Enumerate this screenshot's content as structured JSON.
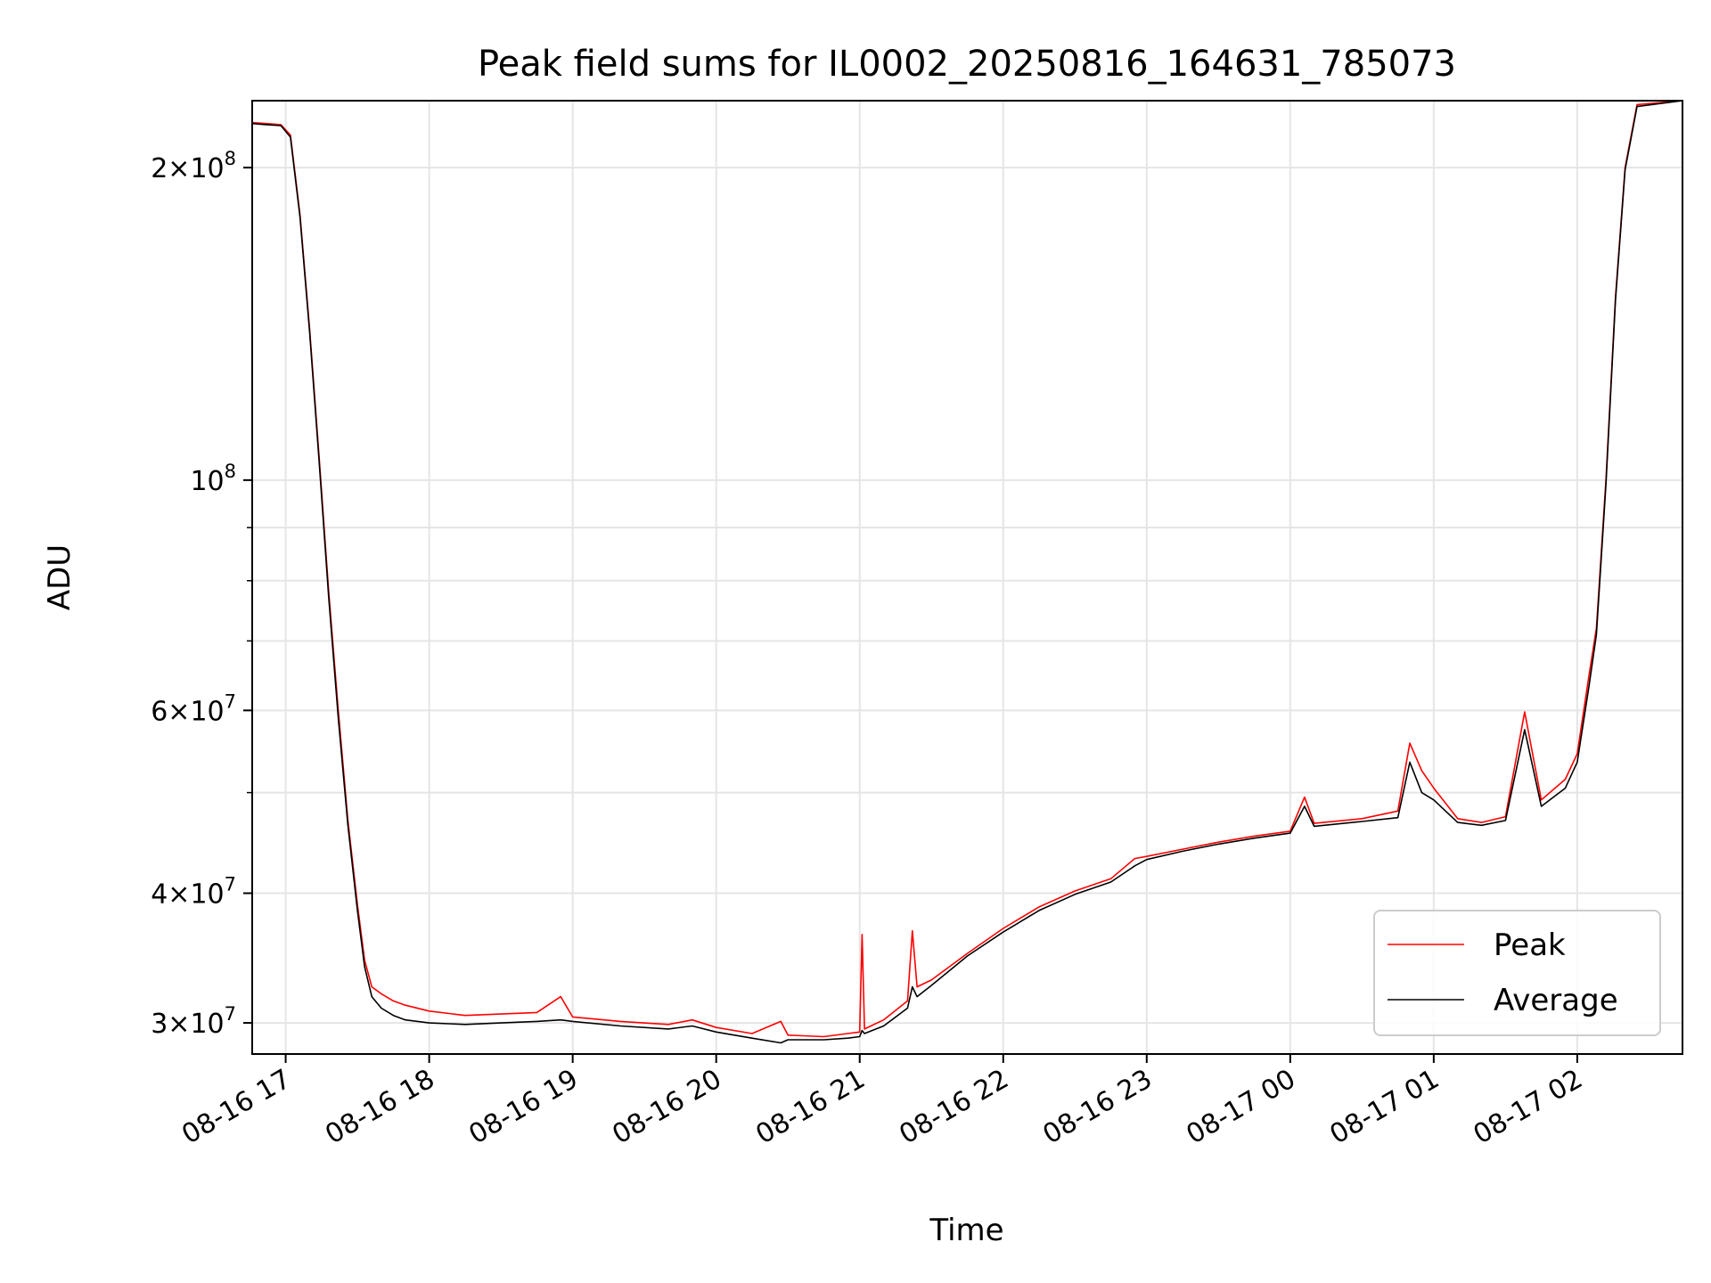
{
  "chart_data": {
    "type": "line",
    "title": "Peak field sums for IL0002_20250816_164631_785073",
    "xlabel": "Time",
    "ylabel": "ADU",
    "y_scale": "log",
    "ylim": [
      28000000,
      232000000
    ],
    "xlim": [
      "08-16 16:46",
      "08-17 02:44"
    ],
    "grid": true,
    "legend_position": "lower-right",
    "x_ticks": [
      "08-16 17",
      "08-16 18",
      "08-16 19",
      "08-16 20",
      "08-16 21",
      "08-16 22",
      "08-16 23",
      "08-17 00",
      "08-17 01",
      "08-17 02"
    ],
    "y_major_ticks": [
      {
        "value": 30000000,
        "mantissa": "3",
        "exp": "7"
      },
      {
        "value": 40000000,
        "mantissa": "4",
        "exp": "7"
      },
      {
        "value": 60000000,
        "mantissa": "6",
        "exp": "7"
      },
      {
        "value": 100000000,
        "mantissa": "",
        "exp": "8"
      },
      {
        "value": 200000000,
        "mantissa": "2",
        "exp": "8"
      }
    ],
    "y_minor_ticks": [
      50000000,
      70000000,
      80000000,
      90000000
    ],
    "series": [
      {
        "name": "Peak",
        "color": "#ff0000",
        "points": [
          [
            "08-16 16:46",
            221000000
          ],
          [
            "08-16 16:52",
            220500000
          ],
          [
            "08-16 16:58",
            220000000
          ],
          [
            "08-16 17:02",
            215000000
          ],
          [
            "08-16 17:06",
            180000000
          ],
          [
            "08-16 17:10",
            140000000
          ],
          [
            "08-16 17:14",
            105000000
          ],
          [
            "08-16 17:18",
            78000000
          ],
          [
            "08-16 17:22",
            60000000
          ],
          [
            "08-16 17:26",
            47000000
          ],
          [
            "08-16 17:30",
            39000000
          ],
          [
            "08-16 17:33",
            34500000
          ],
          [
            "08-16 17:36",
            32500000
          ],
          [
            "08-16 17:40",
            32000000
          ],
          [
            "08-16 17:45",
            31500000
          ],
          [
            "08-16 17:50",
            31200000
          ],
          [
            "08-16 18:00",
            30800000
          ],
          [
            "08-16 18:15",
            30500000
          ],
          [
            "08-16 18:30",
            30600000
          ],
          [
            "08-16 18:45",
            30700000
          ],
          [
            "08-16 18:55",
            31800000
          ],
          [
            "08-16 19:00",
            30400000
          ],
          [
            "08-16 19:20",
            30100000
          ],
          [
            "08-16 19:40",
            29900000
          ],
          [
            "08-16 19:50",
            30200000
          ],
          [
            "08-16 20:00",
            29700000
          ],
          [
            "08-16 20:15",
            29300000
          ],
          [
            "08-16 20:27",
            30100000
          ],
          [
            "08-16 20:30",
            29200000
          ],
          [
            "08-16 20:45",
            29100000
          ],
          [
            "08-16 20:55",
            29300000
          ],
          [
            "08-16 21:00",
            29400000
          ],
          [
            "08-16 21:01",
            36500000
          ],
          [
            "08-16 21:02",
            29600000
          ],
          [
            "08-16 21:10",
            30200000
          ],
          [
            "08-16 21:20",
            31500000
          ],
          [
            "08-16 21:22",
            36800000
          ],
          [
            "08-16 21:24",
            32500000
          ],
          [
            "08-16 21:30",
            33000000
          ],
          [
            "08-16 21:45",
            35000000
          ],
          [
            "08-16 22:00",
            37000000
          ],
          [
            "08-16 22:15",
            38800000
          ],
          [
            "08-16 22:30",
            40200000
          ],
          [
            "08-16 22:45",
            41300000
          ],
          [
            "08-16 22:55",
            43200000
          ],
          [
            "08-16 23:00",
            43400000
          ],
          [
            "08-16 23:15",
            44100000
          ],
          [
            "08-16 23:30",
            44800000
          ],
          [
            "08-16 23:45",
            45400000
          ],
          [
            "08-17 00:00",
            45900000
          ],
          [
            "08-17 00:06",
            49500000
          ],
          [
            "08-17 00:10",
            46700000
          ],
          [
            "08-17 00:30",
            47200000
          ],
          [
            "08-17 00:45",
            48000000
          ],
          [
            "08-17 00:50",
            55800000
          ],
          [
            "08-17 00:55",
            52500000
          ],
          [
            "08-17 01:00",
            50500000
          ],
          [
            "08-17 01:10",
            47200000
          ],
          [
            "08-17 01:20",
            46800000
          ],
          [
            "08-17 01:30",
            47400000
          ],
          [
            "08-17 01:38",
            59800000
          ],
          [
            "08-17 01:45",
            49200000
          ],
          [
            "08-17 01:55",
            51500000
          ],
          [
            "08-17 02:00",
            54500000
          ],
          [
            "08-17 02:05",
            65000000
          ],
          [
            "08-17 02:08",
            72000000
          ],
          [
            "08-17 02:12",
            100000000
          ],
          [
            "08-17 02:16",
            150000000
          ],
          [
            "08-17 02:20",
            200000000
          ],
          [
            "08-17 02:25",
            230000000
          ],
          [
            "08-17 02:44",
            232000000
          ]
        ]
      },
      {
        "name": "Average",
        "color": "#000000",
        "points": [
          [
            "08-16 16:46",
            220500000
          ],
          [
            "08-16 16:52",
            220000000
          ],
          [
            "08-16 16:58",
            219500000
          ],
          [
            "08-16 17:02",
            214000000
          ],
          [
            "08-16 17:06",
            179000000
          ],
          [
            "08-16 17:10",
            139000000
          ],
          [
            "08-16 17:14",
            104000000
          ],
          [
            "08-16 17:18",
            77000000
          ],
          [
            "08-16 17:22",
            59000000
          ],
          [
            "08-16 17:26",
            46500000
          ],
          [
            "08-16 17:30",
            38500000
          ],
          [
            "08-16 17:33",
            34000000
          ],
          [
            "08-16 17:36",
            31800000
          ],
          [
            "08-16 17:40",
            31000000
          ],
          [
            "08-16 17:45",
            30500000
          ],
          [
            "08-16 17:50",
            30200000
          ],
          [
            "08-16 18:00",
            30000000
          ],
          [
            "08-16 18:15",
            29900000
          ],
          [
            "08-16 18:30",
            30000000
          ],
          [
            "08-16 18:45",
            30100000
          ],
          [
            "08-16 18:55",
            30200000
          ],
          [
            "08-16 19:00",
            30100000
          ],
          [
            "08-16 19:20",
            29800000
          ],
          [
            "08-16 19:40",
            29600000
          ],
          [
            "08-16 19:50",
            29800000
          ],
          [
            "08-16 20:00",
            29400000
          ],
          [
            "08-16 20:15",
            29000000
          ],
          [
            "08-16 20:27",
            28700000
          ],
          [
            "08-16 20:30",
            28900000
          ],
          [
            "08-16 20:45",
            28900000
          ],
          [
            "08-16 20:55",
            29000000
          ],
          [
            "08-16 21:00",
            29100000
          ],
          [
            "08-16 21:01",
            29500000
          ],
          [
            "08-16 21:02",
            29300000
          ],
          [
            "08-16 21:10",
            29800000
          ],
          [
            "08-16 21:20",
            31000000
          ],
          [
            "08-16 21:22",
            32500000
          ],
          [
            "08-16 21:24",
            31800000
          ],
          [
            "08-16 21:30",
            32600000
          ],
          [
            "08-16 21:45",
            34800000
          ],
          [
            "08-16 22:00",
            36700000
          ],
          [
            "08-16 22:15",
            38500000
          ],
          [
            "08-16 22:30",
            39900000
          ],
          [
            "08-16 22:45",
            41000000
          ],
          [
            "08-16 22:55",
            42500000
          ],
          [
            "08-16 23:00",
            43100000
          ],
          [
            "08-16 23:15",
            43900000
          ],
          [
            "08-16 23:30",
            44600000
          ],
          [
            "08-16 23:45",
            45200000
          ],
          [
            "08-17 00:00",
            45700000
          ],
          [
            "08-17 00:06",
            48500000
          ],
          [
            "08-17 00:10",
            46400000
          ],
          [
            "08-17 00:30",
            46900000
          ],
          [
            "08-17 00:45",
            47300000
          ],
          [
            "08-17 00:50",
            53500000
          ],
          [
            "08-17 00:55",
            50000000
          ],
          [
            "08-17 01:00",
            49200000
          ],
          [
            "08-17 01:10",
            46800000
          ],
          [
            "08-17 01:20",
            46500000
          ],
          [
            "08-17 01:30",
            47000000
          ],
          [
            "08-17 01:38",
            57500000
          ],
          [
            "08-17 01:45",
            48500000
          ],
          [
            "08-17 01:55",
            50500000
          ],
          [
            "08-17 02:00",
            53500000
          ],
          [
            "08-17 02:05",
            63500000
          ],
          [
            "08-17 02:08",
            71000000
          ],
          [
            "08-17 02:12",
            99000000
          ],
          [
            "08-17 02:16",
            149000000
          ],
          [
            "08-17 02:20",
            199000000
          ],
          [
            "08-17 02:25",
            229000000
          ],
          [
            "08-17 02:44",
            232000000
          ]
        ]
      }
    ]
  }
}
